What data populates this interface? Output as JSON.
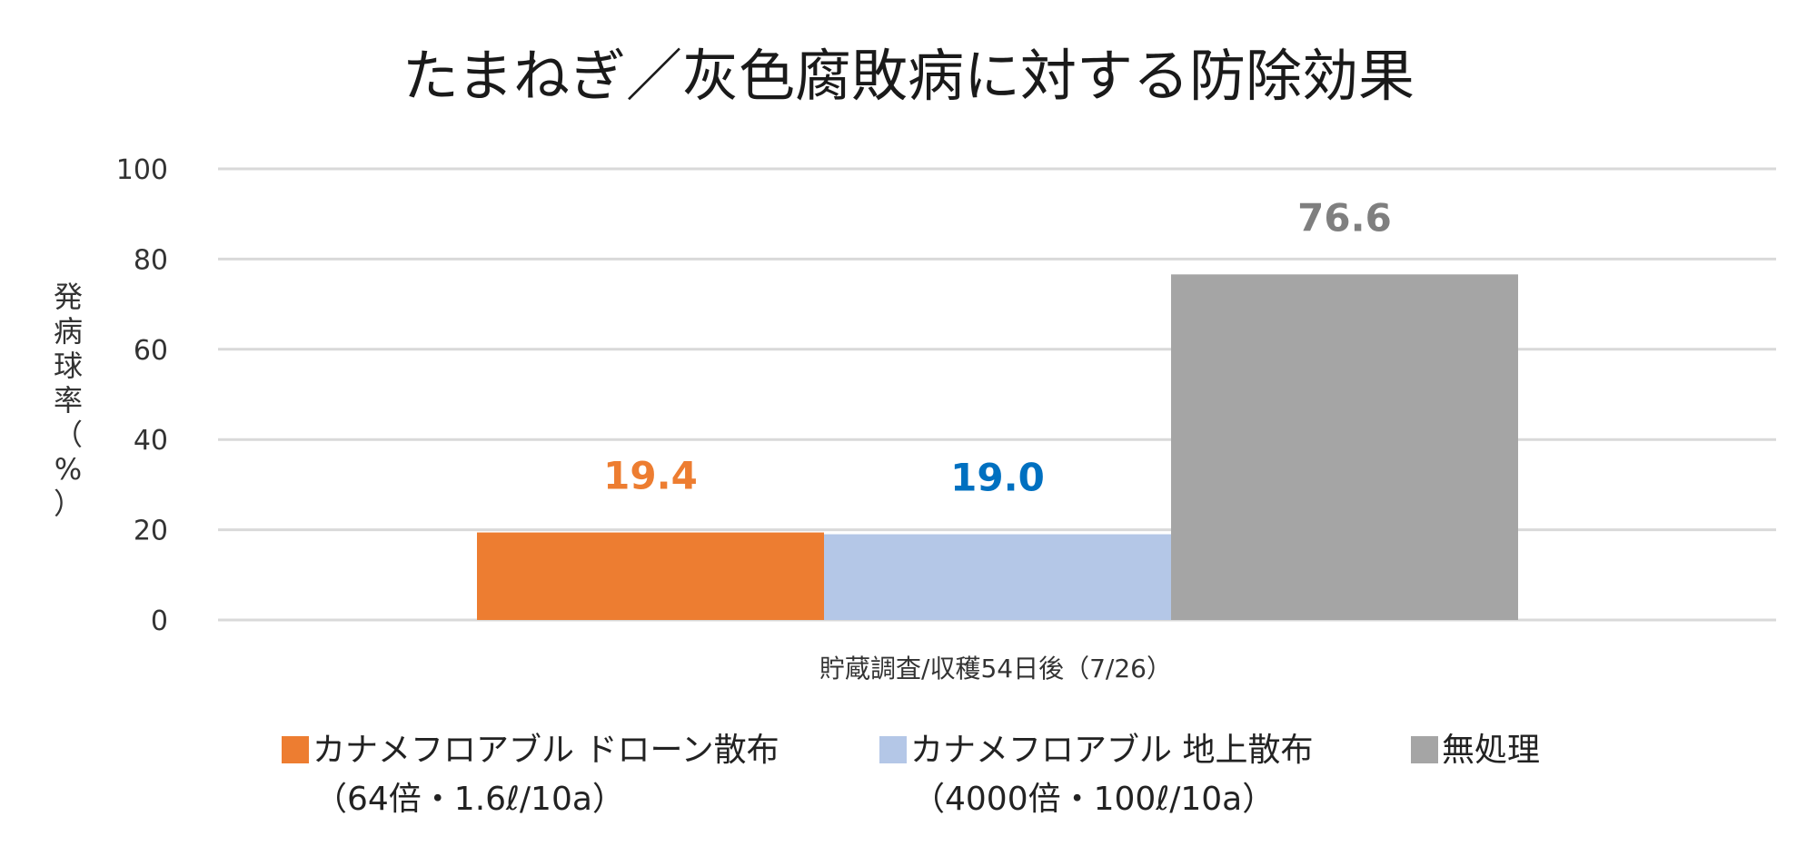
{
  "chart_data": {
    "type": "bar",
    "title": "たまねぎ／灰色腐敗病に対する防除効果",
    "ylabel": "発病球率（%）",
    "xlabel": "",
    "categories": [
      "貯蔵調査/収穫54日後（7/26）"
    ],
    "ylim": [
      0,
      100
    ],
    "yticks": [
      "0",
      "20",
      "40",
      "60",
      "80",
      "100"
    ],
    "grid": true,
    "legend_position": "bottom",
    "series": [
      {
        "name": "カナメフロアブル ドローン散布",
        "name_line2": "（64倍・1.6ℓ/10a）",
        "values": [
          19.4
        ],
        "label": "19.4",
        "color": "#ED7D31",
        "label_color": "#ED7D31"
      },
      {
        "name": "カナメフロアブル 地上散布",
        "name_line2": "（4000倍・100ℓ/10a）",
        "values": [
          19.0
        ],
        "label": "19.0",
        "color": "#B4C7E7",
        "label_color": "#0070C0"
      },
      {
        "name": "無処理",
        "name_line2": "",
        "values": [
          76.6
        ],
        "label": "76.6",
        "color": "#A5A5A5",
        "label_color": "#7F7F7F"
      }
    ]
  }
}
